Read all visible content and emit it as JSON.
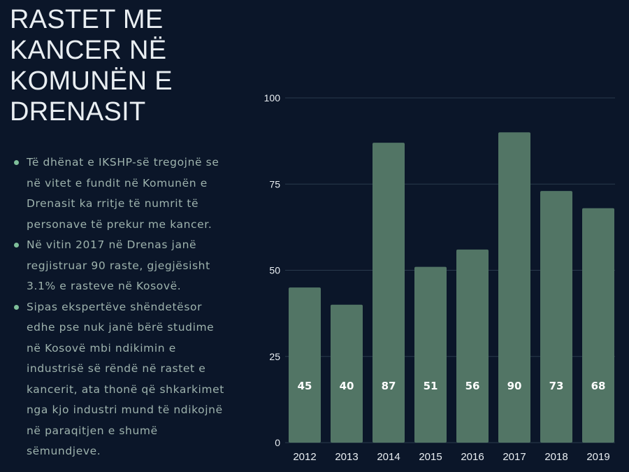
{
  "title_lines": [
    "RASTET ME",
    "KANCER NË",
    "KOMUNËN E",
    "DRENASIT"
  ],
  "bullets": [
    {
      "lines": [
        "Të dhënat e IKSHP-së tregojnë se",
        "në vitet e fundit në Komunën e",
        "Drenasit ka rritje të numrit të",
        "personave të prekur me kancer."
      ]
    },
    {
      "lines": [
        "Në vitin 2017 në Drenas janë",
        "regjistruar 90 raste, gjegjësisht",
        "3.1% e rasteve në Kosovë."
      ]
    },
    {
      "lines": [
        "Sipas ekspertëve shëndetësor",
        "edhe pse nuk janë bërë studime",
        "në Kosovë mbi ndikimin e",
        "industrisë së rëndë në rastet e",
        "kancerit, ata thonë që shkarkimet",
        "nga kjo industri mund të ndikojnë",
        "në paraqitjen e shumë",
        "sëmundjeve."
      ]
    }
  ],
  "colors": {
    "background": "#0b1629",
    "bar": "#527565",
    "grid": "#2a3a4c",
    "bullet_dot": "#7fbf9a",
    "text": "#e9eef2",
    "bullet_text": "#9eb3ad"
  },
  "chart_data": {
    "type": "bar",
    "categories": [
      "2012",
      "2013",
      "2014",
      "2015",
      "2016",
      "2017",
      "2018",
      "2019"
    ],
    "values": [
      45,
      40,
      87,
      51,
      56,
      90,
      73,
      68
    ],
    "data_labels": [
      "45",
      "40",
      "87",
      "51",
      "56",
      "90",
      "73",
      "68"
    ],
    "yticks": [
      0,
      25,
      50,
      75,
      100
    ],
    "ytick_labels": [
      "0",
      "25",
      "50",
      "75",
      "100"
    ],
    "ylim": [
      0,
      100
    ],
    "grid": true,
    "title": "",
    "xlabel": "",
    "ylabel": ""
  }
}
